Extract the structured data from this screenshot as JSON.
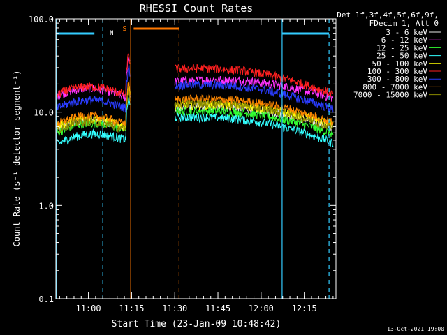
{
  "chart_data": {
    "type": "line",
    "title": "RHESSI Count Rates",
    "xlabel": "Start Time (23-Jan-09 10:48:42)",
    "ylabel": "Count Rate (s⁻¹ detector segment⁻¹)",
    "yscale": "log",
    "ylim": [
      0.1,
      100.0
    ],
    "xlim_minutes": [
      0,
      97.3
    ],
    "y_ticks": [
      "100.0",
      "10.0",
      "1.0",
      "0.1"
    ],
    "x_ticks": [
      {
        "label": "11:00",
        "minute": 11.3
      },
      {
        "label": "11:15",
        "minute": 26.3
      },
      {
        "label": "11:30",
        "minute": 41.3
      },
      {
        "label": "11:45",
        "minute": 56.3
      },
      {
        "label": "12:00",
        "minute": 71.3
      },
      {
        "label": "12:15",
        "minute": 86.3
      }
    ],
    "legend_header": [
      "Det 1f,3f,4f,5f,6f,9f,",
      "FDecim 1, Att 0"
    ],
    "series": [
      {
        "name": "3 - 6 keV",
        "color": "#e8e8e8",
        "pre_start": 6.5,
        "pre_end": 7.5,
        "post_start": 11.5,
        "post_end": 7.0
      },
      {
        "name": "6 - 12 keV",
        "color": "#ff33ff",
        "pre_start": 15.0,
        "pre_end": 15.5,
        "post_start": 22.0,
        "post_end": 14.5
      },
      {
        "name": "12 - 25 keV",
        "color": "#33ff33",
        "pre_start": 6.0,
        "pre_end": 7.0,
        "post_start": 10.5,
        "post_end": 6.0
      },
      {
        "name": "25 - 50 keV",
        "color": "#33ffff",
        "pre_start": 4.5,
        "pre_end": 5.5,
        "post_start": 9.0,
        "post_end": 4.8
      },
      {
        "name": "50 - 100 keV",
        "color": "#ffff00",
        "pre_start": 7.0,
        "pre_end": 7.5,
        "post_start": 12.0,
        "post_end": 7.5
      },
      {
        "name": "100 - 300 keV",
        "color": "#ff2020",
        "pre_start": 15.5,
        "pre_end": 16.5,
        "post_start": 30.0,
        "post_end": 16.0
      },
      {
        "name": "300 - 800 keV",
        "color": "#2a3cff",
        "pre_start": 11.0,
        "pre_end": 12.0,
        "post_start": 20.0,
        "post_end": 11.0
      },
      {
        "name": "800 - 7000 keV",
        "color": "#ff8800",
        "pre_start": 7.5,
        "pre_end": 8.0,
        "post_start": 14.0,
        "post_end": 8.0
      },
      {
        "name": "7000 - 15000 keV",
        "color": "#8a8a00",
        "pre_start": 6.5,
        "pre_end": 7.0,
        "post_start": 12.5,
        "post_end": 7.0
      }
    ],
    "data_gap_minutes": [
      26.3,
      38.8
    ],
    "spike_minute": 25.3,
    "night_markers": [
      {
        "label": "N",
        "start": 0.2,
        "end": 16.3,
        "color": "#33ccff"
      },
      {
        "label": "",
        "start": 78.6,
        "end": 94.9,
        "color": "#33ccff"
      }
    ],
    "saa_marker": {
      "label": "S",
      "start": 26.3,
      "end": 42.8,
      "color": "#ff7700"
    },
    "vertical_lines": [
      {
        "minute": 0.2,
        "style": "solid",
        "color": "#33ccff"
      },
      {
        "minute": 16.3,
        "style": "dashed",
        "color": "#33ccff"
      },
      {
        "minute": 26.0,
        "style": "solid",
        "color": "#ff7700"
      },
      {
        "minute": 42.8,
        "style": "dashed",
        "color": "#ff7700"
      },
      {
        "minute": 78.6,
        "style": "solid",
        "color": "#33ccff"
      },
      {
        "minute": 94.9,
        "style": "dashed",
        "color": "#33ccff"
      }
    ],
    "footer_date": "13-Oct-2021 19:00"
  }
}
